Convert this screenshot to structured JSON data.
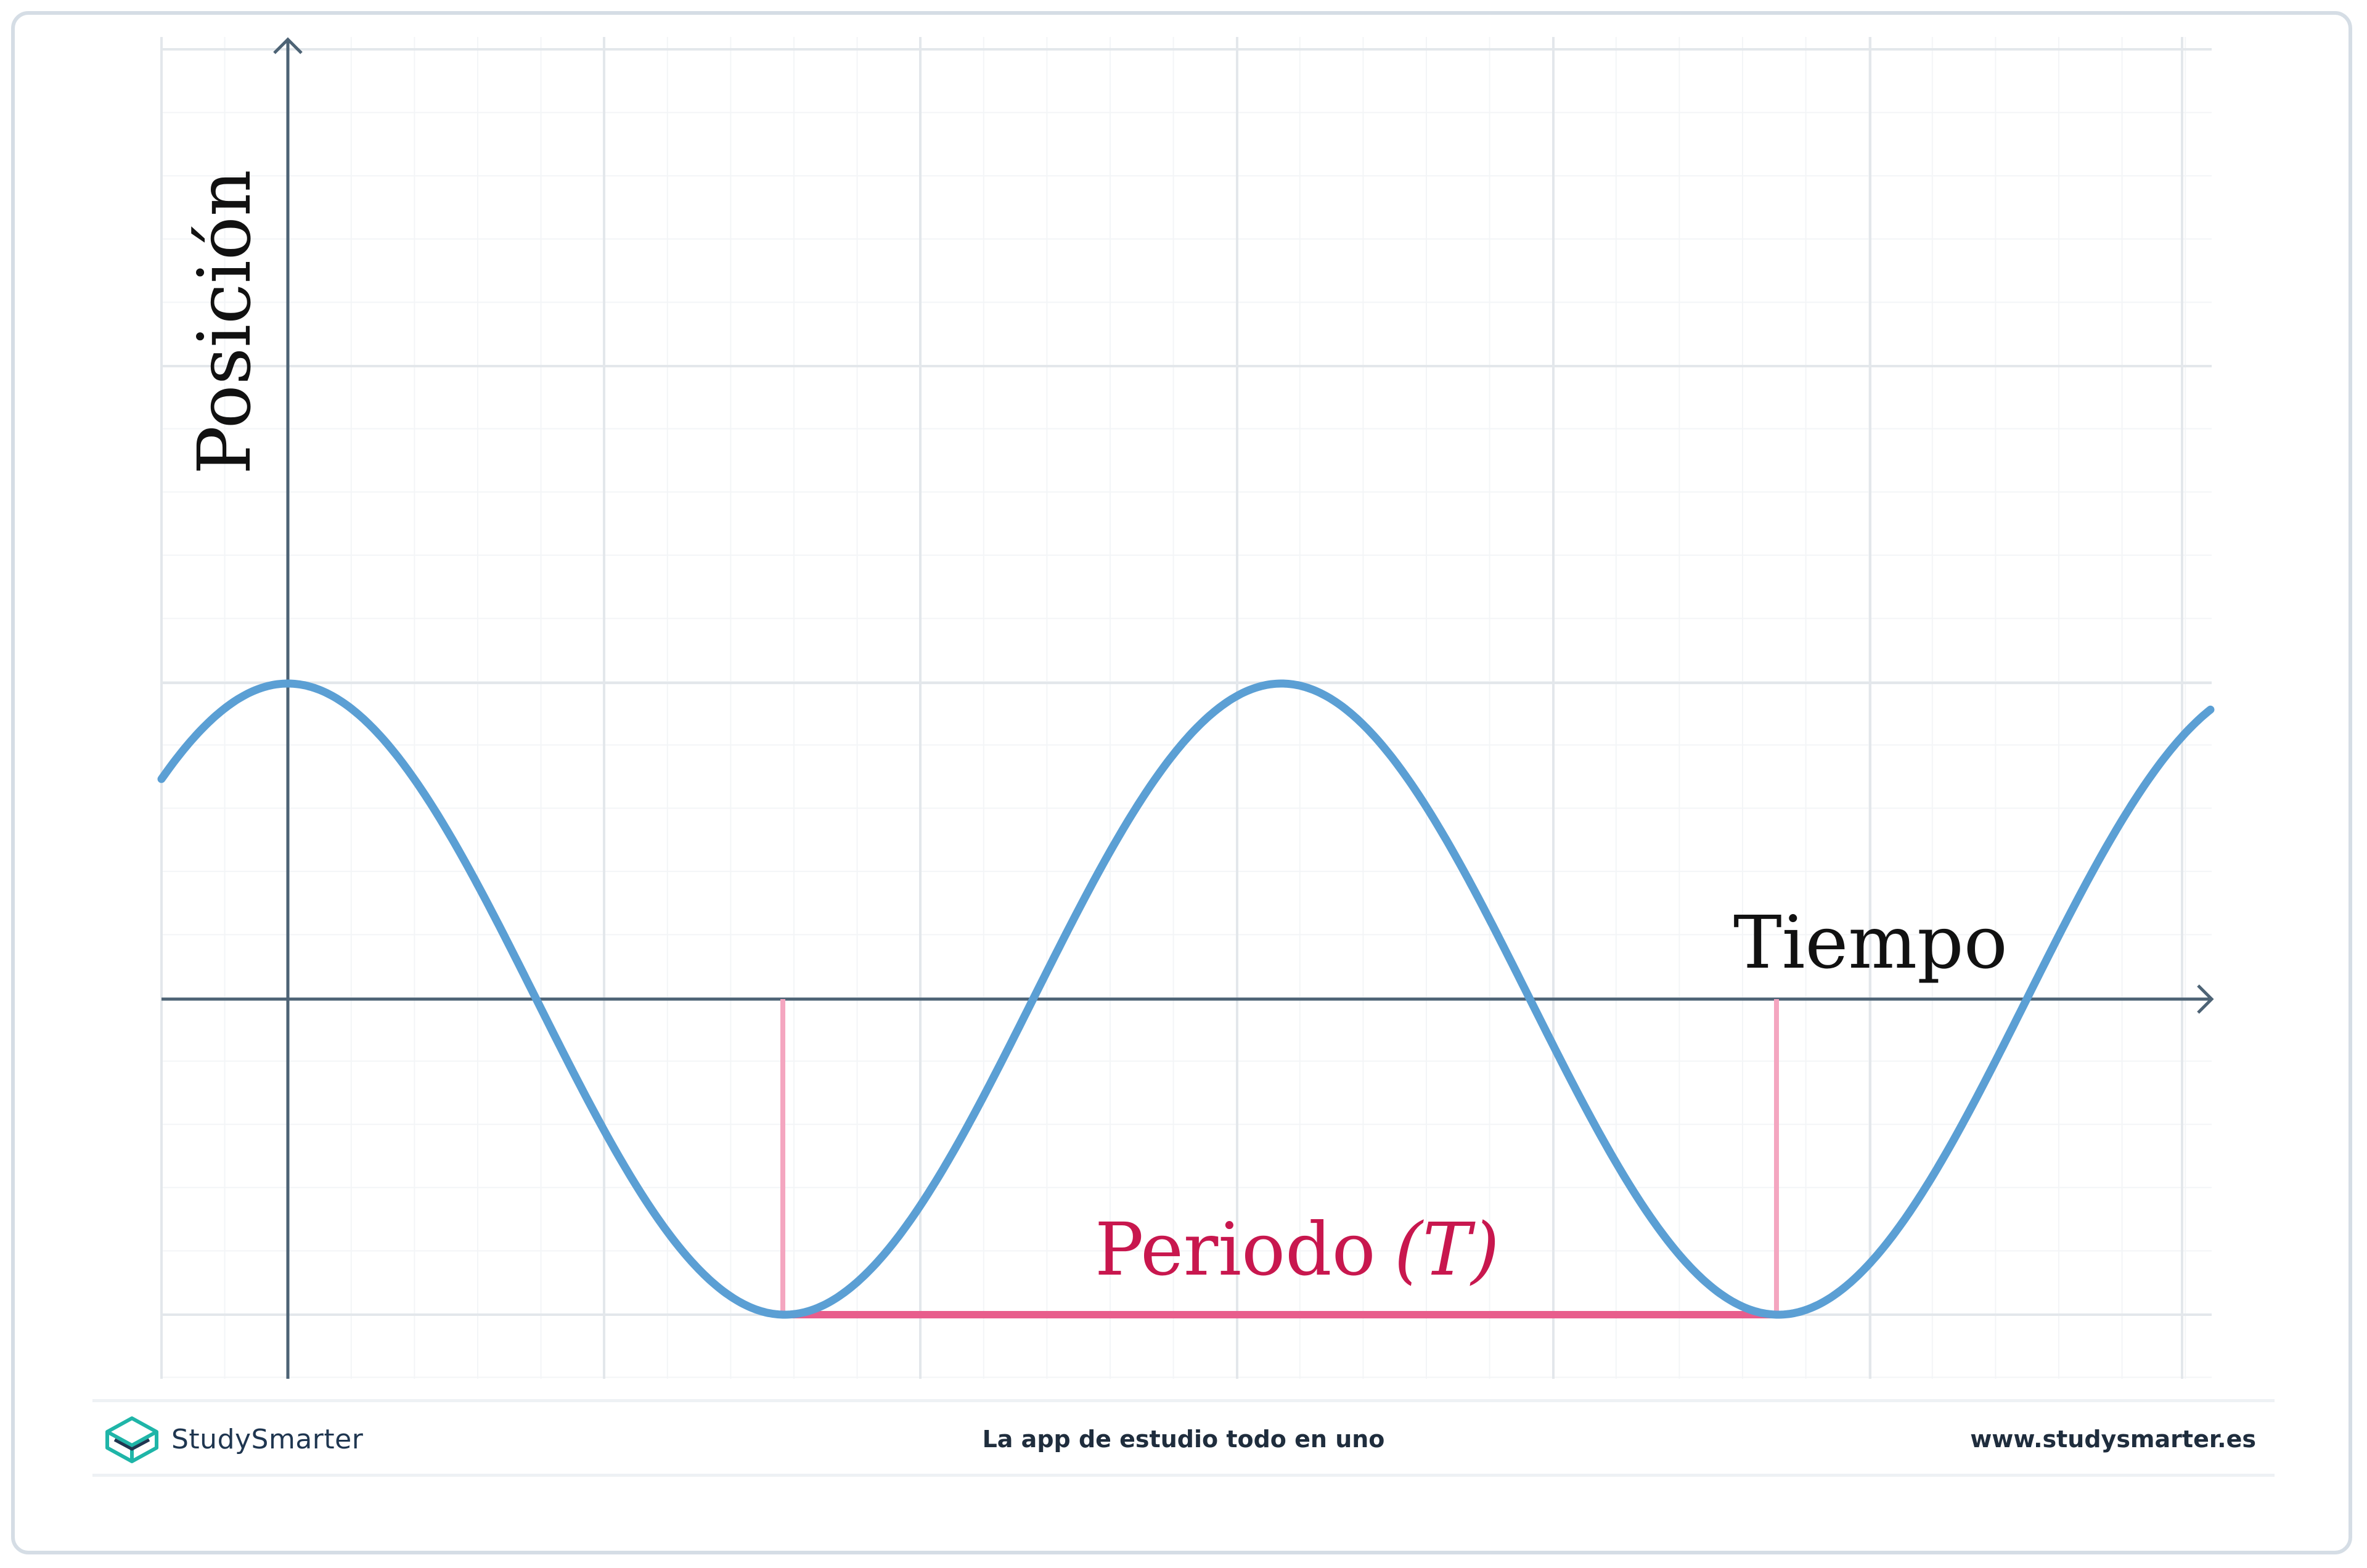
{
  "diagram": {
    "y_axis_label": "Posición",
    "x_axis_label": "Tiempo",
    "period_label": "Periodo",
    "period_symbol": "(T)",
    "colors": {
      "wave": "#5b9fd4",
      "period": "#e85d8c",
      "period_label": "#c8174e",
      "axis": "#4d6375",
      "grid": "#e6e9ed"
    }
  },
  "footer": {
    "brand_name": "StudySmarter",
    "tagline": "La app de estudio todo en uno",
    "url": "www.studysmarter.es",
    "logo_icon": "studysmarter-cube-icon"
  }
}
